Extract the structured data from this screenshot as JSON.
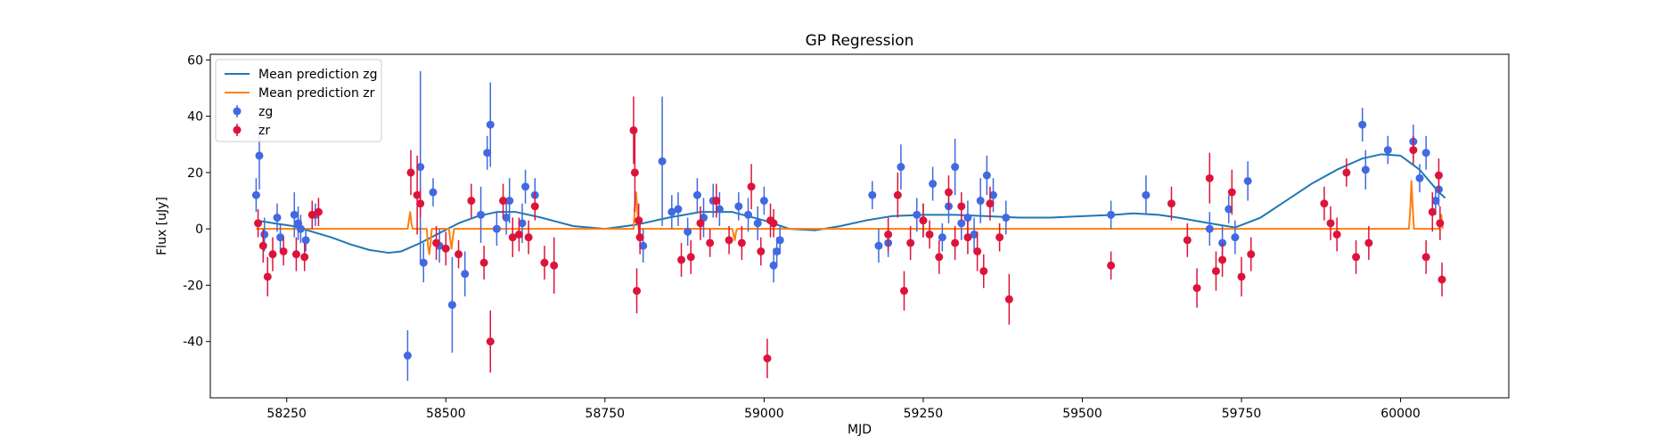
{
  "chart_data": {
    "type": "scatter",
    "title": "GP Regression",
    "xlabel": "MJD",
    "ylabel": "Flux [uJy]",
    "xlim": [
      58130,
      60170
    ],
    "ylim": [
      -60,
      62
    ],
    "xticks": [
      58250,
      58500,
      58750,
      59000,
      59250,
      59500,
      59750,
      60000
    ],
    "yticks": [
      -40,
      -20,
      0,
      20,
      40,
      60
    ],
    "grid": false,
    "legend_position": "upper left",
    "legend": [
      {
        "label": "Mean prediction zg",
        "kind": "line",
        "color": "#1f77b4"
      },
      {
        "label": "Mean prediction zr",
        "kind": "line",
        "color": "#ff7f0e"
      },
      {
        "label": "zg",
        "kind": "errorbar",
        "color": "#4169e1"
      },
      {
        "label": "zr",
        "kind": "errorbar",
        "color": "#dc143c"
      }
    ],
    "series": [
      {
        "name": "Mean prediction zg",
        "kind": "line",
        "color": "#1f77b4",
        "x": [
          58202,
          58230,
          58260,
          58290,
          58320,
          58350,
          58380,
          58410,
          58430,
          58460,
          58490,
          58520,
          58550,
          58580,
          58610,
          58650,
          58700,
          58750,
          58800,
          58850,
          58900,
          58950,
          59000,
          59040,
          59080,
          59120,
          59160,
          59200,
          59250,
          59300,
          59350,
          59400,
          59450,
          59500,
          59550,
          59580,
          59620,
          59650,
          59700,
          59740,
          59780,
          59820,
          59860,
          59900,
          59940,
          59970,
          60000,
          60030,
          60060,
          60070
        ],
        "y": [
          3,
          2,
          1,
          -1,
          -3,
          -5.5,
          -7.5,
          -8.5,
          -8,
          -5,
          -1.5,
          2,
          4.5,
          6,
          6,
          4,
          1,
          0,
          1.5,
          4,
          6,
          6,
          3,
          0,
          -0.5,
          1,
          3,
          4.5,
          5,
          5,
          4.5,
          4,
          4,
          4.5,
          5,
          5.5,
          5,
          4,
          2,
          0.5,
          4,
          10,
          16,
          21,
          25,
          26.5,
          26,
          21,
          13,
          11
        ]
      },
      {
        "name": "Mean prediction zr",
        "kind": "line",
        "color": "#ff7f0e",
        "x": [
          58202,
          58440,
          58442,
          58444,
          58446,
          58448,
          58470,
          58472,
          58474,
          58476,
          58478,
          58505,
          58507,
          58509,
          58511,
          58513,
          58795,
          58797,
          58799,
          58801,
          58803,
          58950,
          58952,
          58954,
          58956,
          58958,
          60013,
          60015,
          60017,
          60019,
          60021,
          60060,
          60062,
          60064,
          60066
        ],
        "y": [
          0,
          0,
          3,
          6,
          2,
          0,
          0,
          -6,
          -9,
          -5,
          0,
          0,
          -4,
          -7,
          -3,
          0,
          0,
          8,
          13,
          6,
          0,
          0,
          -2,
          -4,
          -1,
          0,
          0,
          6,
          17,
          8,
          0,
          0,
          3,
          5,
          0
        ]
      },
      {
        "name": "zg",
        "kind": "errorbar",
        "color": "#4169e1",
        "x": [
          58202,
          58207,
          58215,
          58235,
          58240,
          58262,
          58268,
          58272,
          58280,
          58295,
          58440,
          58460,
          58465,
          58480,
          58490,
          58510,
          58530,
          58555,
          58565,
          58570,
          58580,
          58595,
          58600,
          58620,
          58625,
          58640,
          58810,
          58840,
          58855,
          58865,
          58880,
          58895,
          58905,
          58920,
          58930,
          58960,
          58975,
          58990,
          59000,
          59015,
          59020,
          59025,
          59170,
          59180,
          59195,
          59215,
          59240,
          59250,
          59265,
          59280,
          59290,
          59300,
          59310,
          59320,
          59330,
          59340,
          59350,
          59360,
          59380,
          59545,
          59600,
          59700,
          59720,
          59730,
          59740,
          59760,
          59940,
          59945,
          59980,
          60020,
          60030,
          60040,
          60055,
          60060
        ],
        "y": [
          12,
          26,
          -2,
          4,
          -3,
          5,
          2,
          0,
          -4,
          5,
          -45,
          22,
          -12,
          13,
          -6,
          -27,
          -16,
          5,
          27,
          37,
          0,
          4,
          10,
          2,
          15,
          12,
          -6,
          24,
          6,
          7,
          -1,
          12,
          4,
          10,
          7,
          8,
          5,
          2,
          10,
          -13,
          -8,
          -4,
          12,
          -6,
          -5,
          22,
          5,
          3,
          16,
          -3,
          8,
          22,
          2,
          4,
          -2,
          10,
          19,
          12,
          4,
          5,
          12,
          0,
          -5,
          7,
          -3,
          17,
          37,
          21,
          28,
          31,
          18,
          27,
          10,
          14
        ],
        "err": [
          6,
          12,
          6,
          5,
          5,
          8,
          6,
          5,
          4,
          4,
          9,
          34,
          7,
          5,
          6,
          17,
          8,
          10,
          6,
          15,
          6,
          6,
          8,
          7,
          6,
          6,
          6,
          23,
          6,
          6,
          5,
          6,
          7,
          6,
          6,
          5,
          6,
          6,
          5,
          6,
          5,
          5,
          5,
          6,
          5,
          8,
          6,
          6,
          6,
          5,
          6,
          10,
          6,
          6,
          6,
          8,
          7,
          6,
          6,
          5,
          7,
          6,
          6,
          5,
          6,
          7,
          6,
          7,
          5,
          6,
          5,
          6,
          5,
          6
        ]
      },
      {
        "name": "zr",
        "kind": "errorbar",
        "color": "#dc143c",
        "x": [
          58205,
          58213,
          58220,
          58228,
          58245,
          58265,
          58278,
          58290,
          58300,
          58445,
          58455,
          58460,
          58485,
          58500,
          58520,
          58540,
          58560,
          58570,
          58590,
          58605,
          58615,
          58630,
          58640,
          58655,
          58670,
          58795,
          58797,
          58800,
          58803,
          58805,
          58870,
          58885,
          58900,
          58915,
          58925,
          58945,
          58965,
          58980,
          58995,
          59005,
          59010,
          59015,
          59195,
          59210,
          59220,
          59230,
          59250,
          59260,
          59275,
          59290,
          59300,
          59310,
          59320,
          59335,
          59345,
          59355,
          59370,
          59385,
          59545,
          59640,
          59665,
          59680,
          59700,
          59710,
          59720,
          59735,
          59750,
          59765,
          59880,
          59890,
          59900,
          59915,
          59930,
          59950,
          60020,
          60040,
          60050,
          60060,
          60062,
          60065
        ],
        "y": [
          2,
          -6,
          -17,
          -9,
          -8,
          -9,
          -10,
          5,
          6,
          20,
          12,
          9,
          -5,
          -7,
          -9,
          10,
          -12,
          -40,
          10,
          -3,
          -2,
          -3,
          8,
          -12,
          -13,
          35,
          20,
          -22,
          3,
          -3,
          -11,
          -10,
          2,
          -5,
          10,
          -4,
          -5,
          15,
          -8,
          -46,
          3,
          2,
          -2,
          12,
          -22,
          -5,
          3,
          -2,
          -10,
          13,
          -5,
          8,
          -3,
          -8,
          -15,
          9,
          -3,
          -25,
          -13,
          9,
          -4,
          -21,
          18,
          -15,
          -11,
          13,
          -17,
          -9,
          9,
          2,
          -2,
          20,
          -10,
          -5,
          28,
          -10,
          6,
          19,
          2,
          -18
        ],
        "err": [
          5,
          6,
          7,
          6,
          5,
          6,
          5,
          5,
          5,
          8,
          14,
          5,
          6,
          6,
          5,
          6,
          6,
          11,
          6,
          7,
          6,
          6,
          5,
          6,
          10,
          12,
          14,
          8,
          6,
          6,
          6,
          6,
          6,
          5,
          6,
          5,
          6,
          8,
          5,
          7,
          6,
          5,
          6,
          8,
          7,
          6,
          6,
          5,
          6,
          6,
          6,
          5,
          6,
          7,
          6,
          6,
          5,
          9,
          5,
          6,
          6,
          7,
          9,
          7,
          6,
          8,
          7,
          6,
          6,
          6,
          6,
          5,
          6,
          6,
          5,
          6,
          7,
          6,
          6,
          6
        ]
      }
    ]
  }
}
